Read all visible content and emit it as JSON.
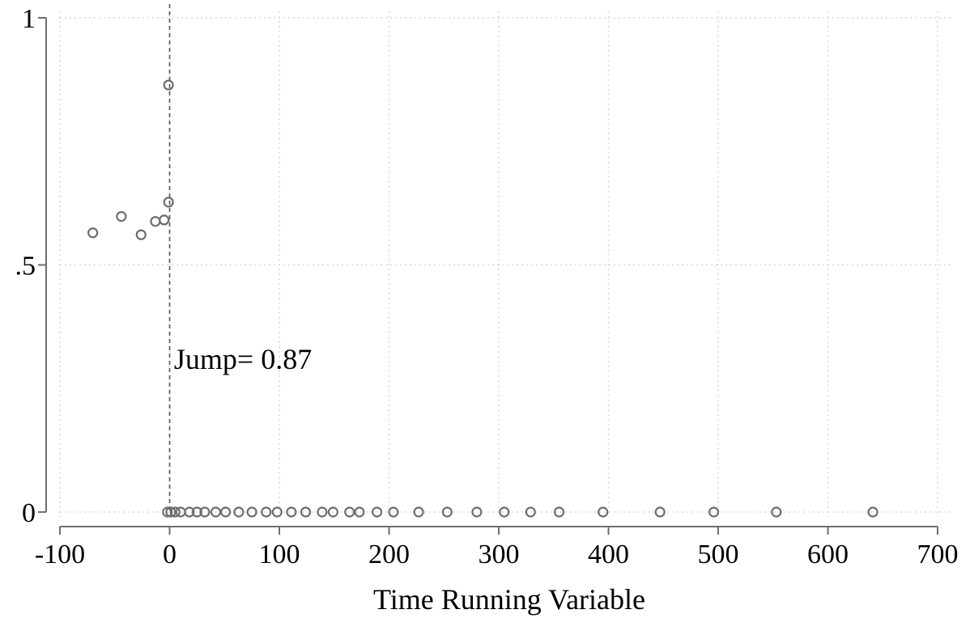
{
  "chart_data": {
    "type": "scatter",
    "title": "",
    "xlabel": "Time Running Variable",
    "ylabel": "",
    "xlim": [
      -100,
      700
    ],
    "ylim": [
      0,
      1
    ],
    "x_ticks": [
      -100,
      0,
      100,
      200,
      300,
      400,
      500,
      600,
      700
    ],
    "x_tick_labels": [
      "-100",
      "0",
      "100",
      "200",
      "300",
      "400",
      "500",
      "600",
      "700"
    ],
    "y_ticks": [
      0,
      0.5,
      1
    ],
    "y_tick_labels": [
      "0",
      ".5",
      "1"
    ],
    "grid": true,
    "marker": "hollow-circle",
    "marker_color": "#6e6e6e",
    "threshold": {
      "x": 0,
      "style": "dashed"
    },
    "annotation": {
      "text": "Jump= 0.87",
      "x": 4,
      "y": 0.29
    },
    "points": [
      {
        "x": -70,
        "y": 0.565
      },
      {
        "x": -44,
        "y": 0.598
      },
      {
        "x": -26,
        "y": 0.561
      },
      {
        "x": -13,
        "y": 0.588
      },
      {
        "x": -5,
        "y": 0.591
      },
      {
        "x": -1,
        "y": 0.627
      },
      {
        "x": -1,
        "y": 0.864
      },
      {
        "x": -2,
        "y": 0
      },
      {
        "x": 1,
        "y": 0
      },
      {
        "x": 5,
        "y": 0
      },
      {
        "x": 10,
        "y": 0
      },
      {
        "x": 18,
        "y": 0
      },
      {
        "x": 25,
        "y": 0
      },
      {
        "x": 32,
        "y": 0
      },
      {
        "x": 42,
        "y": 0
      },
      {
        "x": 51,
        "y": 0
      },
      {
        "x": 63,
        "y": 0
      },
      {
        "x": 75,
        "y": 0
      },
      {
        "x": 88,
        "y": 0
      },
      {
        "x": 98,
        "y": 0
      },
      {
        "x": 111,
        "y": 0
      },
      {
        "x": 124,
        "y": 0
      },
      {
        "x": 139,
        "y": 0
      },
      {
        "x": 149,
        "y": 0
      },
      {
        "x": 164,
        "y": 0
      },
      {
        "x": 173,
        "y": 0
      },
      {
        "x": 189,
        "y": 0
      },
      {
        "x": 204,
        "y": 0
      },
      {
        "x": 227,
        "y": 0
      },
      {
        "x": 253,
        "y": 0
      },
      {
        "x": 280,
        "y": 0
      },
      {
        "x": 305,
        "y": 0
      },
      {
        "x": 329,
        "y": 0
      },
      {
        "x": 355,
        "y": 0
      },
      {
        "x": 395,
        "y": 0
      },
      {
        "x": 447,
        "y": 0
      },
      {
        "x": 496,
        "y": 0
      },
      {
        "x": 553,
        "y": 0
      },
      {
        "x": 641,
        "y": 0
      }
    ]
  }
}
